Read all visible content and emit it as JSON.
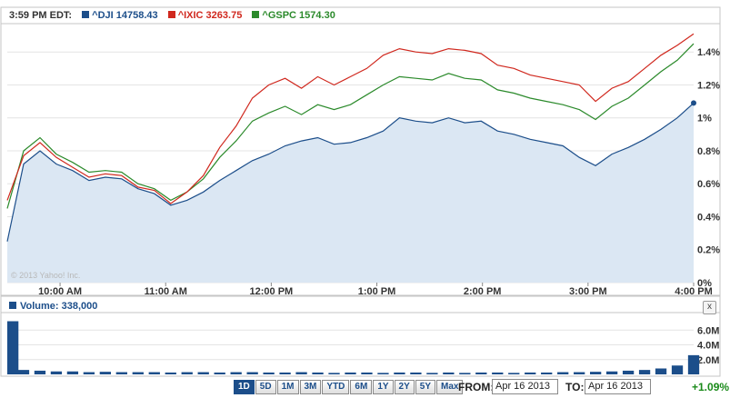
{
  "header": {
    "time_label": "3:59 PM EDT:",
    "legend": [
      {
        "label": "^DJI 14758.43",
        "color": "#1c4e8a"
      },
      {
        "label": "^IXIC 3263.75",
        "color": "#d0281e"
      },
      {
        "label": "^GSPC 1574.30",
        "color": "#2b8a2b"
      }
    ]
  },
  "copyright": "© 2013 Yahoo! Inc.",
  "volume": {
    "label": "Volume: 338,000",
    "close_label": "x"
  },
  "range_buttons": [
    "1D",
    "5D",
    "1M",
    "3M",
    "YTD",
    "6M",
    "1Y",
    "2Y",
    "5Y",
    "Max"
  ],
  "active_range": "1D",
  "date_range": {
    "from_label": "FROM:",
    "from_value": "Apr 16 2013",
    "to_label": "TO:",
    "to_value": "Apr 16 2013"
  },
  "change": "+1.09%",
  "chart_data": {
    "type": "line",
    "x_ticks": [
      "10:00 AM",
      "11:00 AM",
      "12:00 PM",
      "1:00 PM",
      "2:00 PM",
      "3:00 PM",
      "4:00 PM"
    ],
    "y_ticks": [
      "0%",
      "0.2%",
      "0.4%",
      "0.6%",
      "0.8%",
      "1%",
      "1.2%",
      "1.4%"
    ],
    "ylim": [
      0,
      1.55
    ],
    "x": [
      "9:30",
      "9:35",
      "9:40",
      "9:45",
      "9:50",
      "9:55",
      "10:00",
      "10:10",
      "10:20",
      "10:30",
      "10:40",
      "10:50",
      "11:00",
      "11:10",
      "11:20",
      "11:30",
      "11:40",
      "11:50",
      "12:00",
      "12:10",
      "12:20",
      "12:30",
      "12:40",
      "12:50",
      "1:00",
      "1:10",
      "1:20",
      "1:30",
      "1:40",
      "1:50",
      "2:00",
      "2:10",
      "2:20",
      "2:30",
      "2:40",
      "2:50",
      "3:00",
      "3:10",
      "3:20",
      "3:30",
      "3:40",
      "3:50",
      "3:59"
    ],
    "series": [
      {
        "name": "^DJI",
        "color": "#1c4e8a",
        "filled": true,
        "values": [
          0.25,
          0.72,
          0.8,
          0.72,
          0.68,
          0.62,
          0.64,
          0.63,
          0.57,
          0.54,
          0.47,
          0.5,
          0.55,
          0.62,
          0.68,
          0.74,
          0.78,
          0.83,
          0.86,
          0.88,
          0.84,
          0.85,
          0.88,
          0.92,
          1.0,
          0.98,
          0.97,
          1.0,
          0.97,
          0.98,
          0.92,
          0.9,
          0.87,
          0.85,
          0.83,
          0.76,
          0.71,
          0.78,
          0.82,
          0.87,
          0.93,
          1.0,
          1.09
        ]
      },
      {
        "name": "^IXIC",
        "color": "#d0281e",
        "filled": false,
        "values": [
          0.5,
          0.77,
          0.85,
          0.76,
          0.7,
          0.64,
          0.66,
          0.65,
          0.58,
          0.56,
          0.48,
          0.55,
          0.65,
          0.82,
          0.95,
          1.12,
          1.2,
          1.24,
          1.18,
          1.25,
          1.2,
          1.25,
          1.3,
          1.38,
          1.42,
          1.4,
          1.39,
          1.42,
          1.41,
          1.39,
          1.32,
          1.3,
          1.26,
          1.24,
          1.22,
          1.2,
          1.1,
          1.18,
          1.22,
          1.3,
          1.38,
          1.44,
          1.51
        ]
      },
      {
        "name": "^GSPC",
        "color": "#2b8a2b",
        "filled": false,
        "values": [
          0.45,
          0.8,
          0.88,
          0.78,
          0.73,
          0.67,
          0.68,
          0.67,
          0.6,
          0.57,
          0.5,
          0.55,
          0.63,
          0.76,
          0.86,
          0.98,
          1.03,
          1.07,
          1.02,
          1.08,
          1.05,
          1.08,
          1.14,
          1.2,
          1.25,
          1.24,
          1.23,
          1.27,
          1.24,
          1.23,
          1.17,
          1.15,
          1.12,
          1.1,
          1.08,
          1.05,
          0.99,
          1.07,
          1.12,
          1.2,
          1.28,
          1.35,
          1.45
        ]
      }
    ],
    "volume_values": [
      7.2,
      0.6,
      0.5,
      0.4,
      0.4,
      0.3,
      0.35,
      0.3,
      0.3,
      0.3,
      0.25,
      0.3,
      0.3,
      0.25,
      0.3,
      0.3,
      0.25,
      0.25,
      0.3,
      0.25,
      0.2,
      0.25,
      0.25,
      0.2,
      0.25,
      0.25,
      0.2,
      0.25,
      0.2,
      0.25,
      0.25,
      0.2,
      0.25,
      0.25,
      0.3,
      0.3,
      0.35,
      0.4,
      0.5,
      0.6,
      0.8,
      1.2,
      2.6
    ],
    "volume_ticks": [
      "2.0M",
      "4.0M",
      "6.0M"
    ],
    "volume_ylim": [
      0,
      8
    ]
  }
}
